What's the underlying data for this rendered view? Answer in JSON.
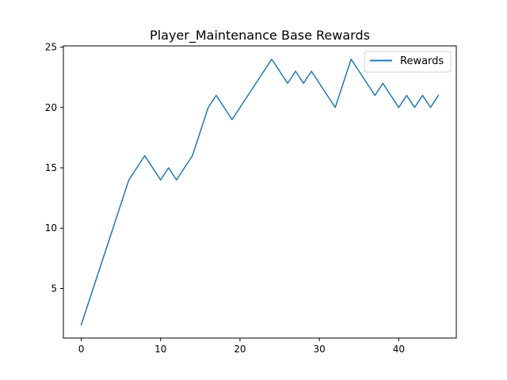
{
  "chart_data": {
    "type": "line",
    "title": "Player_Maintenance Base Rewards",
    "xlabel": "",
    "ylabel": "",
    "xlim": [
      -2.25,
      47.25
    ],
    "ylim": [
      0.9,
      25.1
    ],
    "x_ticks": [
      0,
      10,
      20,
      30,
      40
    ],
    "y_ticks": [
      5,
      10,
      15,
      20,
      25
    ],
    "grid": false,
    "legend_position": "top-right",
    "series": [
      {
        "name": "Rewards",
        "color": "#1f77b4",
        "x": [
          0,
          1,
          2,
          3,
          4,
          5,
          6,
          7,
          8,
          9,
          10,
          11,
          12,
          13,
          14,
          15,
          16,
          17,
          18,
          19,
          20,
          21,
          22,
          23,
          24,
          25,
          26,
          27,
          28,
          29,
          30,
          31,
          32,
          33,
          34,
          35,
          36,
          37,
          38,
          39,
          40,
          41,
          42,
          43,
          44,
          45
        ],
        "values": [
          2,
          4,
          6,
          8,
          10,
          12,
          14,
          15,
          16,
          15,
          14,
          15,
          14,
          15,
          16,
          18,
          20,
          21,
          20,
          19,
          20,
          21,
          22,
          23,
          24,
          23,
          22,
          23,
          22,
          23,
          22,
          21,
          20,
          22,
          24,
          23,
          22,
          21,
          22,
          21,
          20,
          21,
          20,
          21,
          20,
          21
        ]
      }
    ]
  }
}
